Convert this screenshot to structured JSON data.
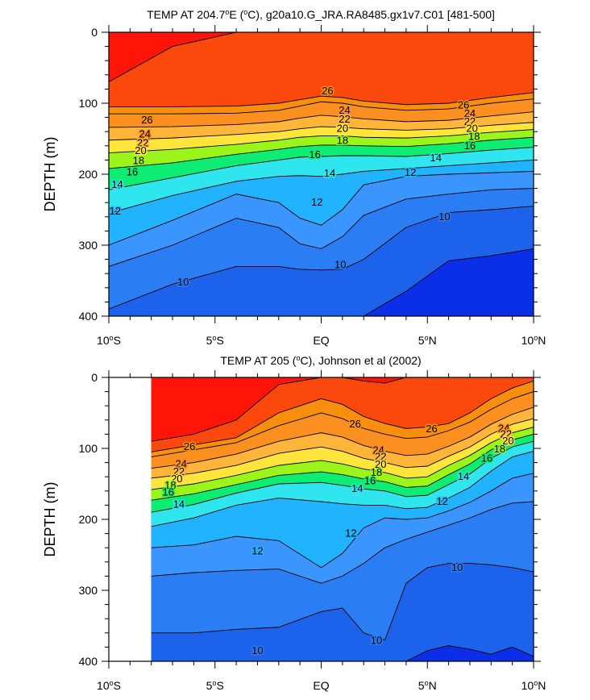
{
  "chart_data": [
    {
      "type": "contour",
      "title": "TEMP AT 204.7°E (°C), g20a10.G_JRA.RA8485.gx1v7.C01 [481-500]",
      "title_parts": {
        "pre": "TEMP AT 204.7",
        "deg1": "o",
        "mid": "E (",
        "deg2": "o",
        "post": "C), g20a10.G_JRA.RA8485.gx1v7.C01 [481-500]"
      },
      "ylabel": "DEPTH (m)",
      "xlim": [
        -10,
        10
      ],
      "ylim": [
        400,
        0
      ],
      "xticks": [
        -10,
        -5,
        0,
        5,
        10
      ],
      "yticks": [
        0,
        100,
        200,
        300,
        400
      ],
      "data_xrange": [
        -10,
        10
      ],
      "levels": [
        8,
        9,
        10,
        11,
        12,
        13,
        14,
        15,
        16,
        17,
        18,
        19,
        20,
        21,
        22,
        23,
        24,
        25,
        26,
        27,
        28
      ],
      "isotherm_depths_x": [
        -10,
        -7,
        -4,
        -2,
        -1,
        0,
        1,
        2,
        4,
        6,
        8,
        10
      ],
      "isotherm_depths": [
        {
          "level": 28,
          "depth": [
            70,
            20,
            0,
            0,
            0,
            0,
            0,
            0,
            0,
            0,
            0,
            0
          ]
        },
        {
          "level": 27,
          "depth": [
            105,
            105,
            104,
            100,
            95,
            90,
            92,
            97,
            102,
            100,
            92,
            85
          ]
        },
        {
          "level": 26,
          "depth": [
            115,
            115,
            114,
            110,
            104,
            98,
            100,
            105,
            110,
            108,
            100,
            94
          ]
        },
        {
          "level": 24,
          "depth": [
            134,
            133,
            130,
            126,
            121,
            117,
            119,
            122,
            126,
            124,
            118,
            112
          ]
        },
        {
          "level": 22,
          "depth": [
            152,
            149,
            144,
            140,
            136,
            133,
            134,
            136,
            138,
            136,
            131,
            127
          ]
        },
        {
          "level": 20,
          "depth": [
            170,
            165,
            158,
            152,
            148,
            146,
            146,
            148,
            149,
            146,
            141,
            137
          ]
        },
        {
          "level": 18,
          "depth": [
            192,
            184,
            172,
            165,
            161,
            159,
            159,
            160,
            161,
            157,
            152,
            148
          ]
        },
        {
          "level": 16,
          "depth": [
            222,
            205,
            188,
            180,
            176,
            175,
            174,
            174,
            175,
            171,
            166,
            162
          ]
        },
        {
          "level": 14,
          "depth": [
            255,
            230,
            210,
            203,
            202,
            203,
            200,
            196,
            192,
            188,
            184,
            180
          ]
        },
        {
          "level": 12,
          "depth": [
            300,
            265,
            228,
            240,
            262,
            272,
            250,
            215,
            203,
            200,
            198,
            196
          ]
        },
        {
          "level": 11,
          "depth": [
            330,
            300,
            262,
            275,
            298,
            305,
            288,
            258,
            235,
            228,
            222,
            220
          ]
        },
        {
          "level": 10,
          "depth": [
            390,
            355,
            330,
            330,
            334,
            335,
            334,
            320,
            275,
            254,
            250,
            245
          ]
        },
        {
          "level": 9,
          "depth": [
            400,
            400,
            400,
            400,
            400,
            400,
            400,
            400,
            365,
            322,
            315,
            305
          ]
        }
      ],
      "contour_labels": [
        {
          "text": "26",
          "x": 0.3,
          "y": 83
        },
        {
          "text": "26",
          "x": 6.7,
          "y": 103
        },
        {
          "text": "26",
          "x": -8.2,
          "y": 124
        },
        {
          "text": "24",
          "x": 1.1,
          "y": 110
        },
        {
          "text": "24",
          "x": 7.0,
          "y": 115
        },
        {
          "text": "24",
          "x": -8.3,
          "y": 144
        },
        {
          "text": "22",
          "x": 1.1,
          "y": 123
        },
        {
          "text": "22",
          "x": 7.0,
          "y": 126
        },
        {
          "text": "22",
          "x": -8.4,
          "y": 156
        },
        {
          "text": "20",
          "x": 1.0,
          "y": 136
        },
        {
          "text": "20",
          "x": 7.1,
          "y": 136
        },
        {
          "text": "20",
          "x": -8.5,
          "y": 167
        },
        {
          "text": "18",
          "x": 1.0,
          "y": 153
        },
        {
          "text": "18",
          "x": 7.2,
          "y": 147
        },
        {
          "text": "18",
          "x": -8.6,
          "y": 181
        },
        {
          "text": "16",
          "x": -0.3,
          "y": 173
        },
        {
          "text": "16",
          "x": 7.0,
          "y": 160
        },
        {
          "text": "16",
          "x": -8.9,
          "y": 197
        },
        {
          "text": "14",
          "x": 0.4,
          "y": 199
        },
        {
          "text": "14",
          "x": 5.4,
          "y": 177
        },
        {
          "text": "14",
          "x": -9.6,
          "y": 215
        },
        {
          "text": "12",
          "x": -0.2,
          "y": 240
        },
        {
          "text": "12",
          "x": 4.2,
          "y": 198
        },
        {
          "text": "12",
          "x": -9.7,
          "y": 252
        },
        {
          "text": "10",
          "x": -6.5,
          "y": 352
        },
        {
          "text": "10",
          "x": 0.9,
          "y": 328
        },
        {
          "text": "10",
          "x": 5.8,
          "y": 260
        }
      ]
    },
    {
      "type": "contour",
      "title": "TEMP AT 205 (°C), Johnson et al (2002)",
      "title_parts": {
        "pre": "TEMP AT 205 (",
        "deg": "o",
        "post": "C), Johnson et al (2002)"
      },
      "ylabel": "DEPTH (m)",
      "xlim": [
        -10,
        10
      ],
      "ylim": [
        400,
        0
      ],
      "xticks": [
        -10,
        -5,
        0,
        5,
        10
      ],
      "yticks": [
        0,
        100,
        200,
        300,
        400
      ],
      "data_xrange": [
        -8,
        10
      ],
      "levels": [
        8,
        9,
        10,
        11,
        12,
        13,
        14,
        15,
        16,
        17,
        18,
        19,
        20,
        21,
        22,
        23,
        24,
        25,
        26,
        27,
        28
      ],
      "isotherm_depths_x": [
        -8,
        -6,
        -4,
        -2,
        0,
        1,
        2,
        3,
        4,
        5,
        6,
        7,
        8,
        9,
        10
      ],
      "isotherm_depths": [
        {
          "level": 28,
          "depth": [
            90,
            80,
            60,
            10,
            0,
            0,
            5,
            8,
            0,
            0,
            0,
            0,
            0,
            0,
            0
          ]
        },
        {
          "level": 27,
          "depth": [
            105,
            95,
            85,
            50,
            30,
            38,
            55,
            65,
            72,
            70,
            65,
            50,
            30,
            15,
            5
          ]
        },
        {
          "level": 26,
          "depth": [
            112,
            102,
            92,
            68,
            50,
            58,
            72,
            80,
            86,
            84,
            75,
            63,
            45,
            30,
            20
          ]
        },
        {
          "level": 24,
          "depth": [
            128,
            120,
            108,
            90,
            78,
            84,
            96,
            104,
            110,
            108,
            97,
            84,
            66,
            52,
            42
          ]
        },
        {
          "level": 22,
          "depth": [
            142,
            135,
            124,
            107,
            98,
            104,
            114,
            120,
            127,
            125,
            111,
            98,
            80,
            66,
            58
          ]
        },
        {
          "level": 20,
          "depth": [
            158,
            150,
            138,
            124,
            117,
            122,
            129,
            134,
            142,
            140,
            124,
            110,
            92,
            78,
            70
          ]
        },
        {
          "level": 18,
          "depth": [
            173,
            164,
            151,
            138,
            133,
            137,
            143,
            147,
            155,
            153,
            137,
            122,
            102,
            88,
            80
          ]
        },
        {
          "level": 16,
          "depth": [
            190,
            179,
            163,
            150,
            148,
            152,
            157,
            160,
            168,
            166,
            151,
            136,
            114,
            98,
            90
          ]
        },
        {
          "level": 14,
          "depth": [
            210,
            198,
            180,
            170,
            175,
            178,
            180,
            180,
            185,
            183,
            170,
            155,
            132,
            112,
            104
          ]
        },
        {
          "level": 12,
          "depth": [
            240,
            236,
            224,
            230,
            268,
            248,
            212,
            198,
            200,
            198,
            188,
            176,
            160,
            142,
            135
          ]
        },
        {
          "level": 11,
          "depth": [
            280,
            275,
            272,
            270,
            290,
            280,
            262,
            240,
            228,
            218,
            208,
            198,
            186,
            177,
            175
          ]
        },
        {
          "level": 10,
          "depth": [
            360,
            360,
            355,
            352,
            330,
            325,
            360,
            370,
            290,
            268,
            262,
            262,
            264,
            268,
            274
          ]
        },
        {
          "level": 9,
          "depth": [
            400,
            400,
            400,
            400,
            400,
            400,
            400,
            400,
            400,
            385,
            378,
            383,
            390,
            380,
            393
          ]
        }
      ],
      "contour_labels": [
        {
          "text": "26",
          "x": 1.6,
          "y": 66
        },
        {
          "text": "26",
          "x": 5.2,
          "y": 73
        },
        {
          "text": "26",
          "x": -6.2,
          "y": 98
        },
        {
          "text": "24",
          "x": 2.7,
          "y": 103
        },
        {
          "text": "24",
          "x": 8.6,
          "y": 72
        },
        {
          "text": "24",
          "x": -6.6,
          "y": 122
        },
        {
          "text": "22",
          "x": 2.8,
          "y": 112
        },
        {
          "text": "22",
          "x": 8.7,
          "y": 80
        },
        {
          "text": "22",
          "x": -6.7,
          "y": 133
        },
        {
          "text": "20",
          "x": 2.8,
          "y": 123
        },
        {
          "text": "20",
          "x": 8.8,
          "y": 90
        },
        {
          "text": "20",
          "x": -6.8,
          "y": 143
        },
        {
          "text": "18",
          "x": 2.6,
          "y": 134
        },
        {
          "text": "18",
          "x": 8.4,
          "y": 101
        },
        {
          "text": "18",
          "x": -7.1,
          "y": 152
        },
        {
          "text": "16",
          "x": 2.3,
          "y": 146
        },
        {
          "text": "16",
          "x": 7.8,
          "y": 114
        },
        {
          "text": "16",
          "x": -7.2,
          "y": 162
        },
        {
          "text": "14",
          "x": 1.7,
          "y": 157
        },
        {
          "text": "14",
          "x": 6.7,
          "y": 140
        },
        {
          "text": "14",
          "x": -6.7,
          "y": 179
        },
        {
          "text": "12",
          "x": 1.4,
          "y": 220
        },
        {
          "text": "12",
          "x": 5.7,
          "y": 175
        },
        {
          "text": "12",
          "x": -3.0,
          "y": 245
        },
        {
          "text": "10",
          "x": -3.0,
          "y": 385
        },
        {
          "text": "10",
          "x": 2.6,
          "y": 371
        },
        {
          "text": "10",
          "x": 6.4,
          "y": 268
        }
      ]
    }
  ],
  "colors": {
    "fill_levels": [
      {
        "min": 0,
        "max": 9,
        "color": "#0b2fe9"
      },
      {
        "min": 9,
        "max": 10,
        "color": "#1c62eb"
      },
      {
        "min": 10,
        "max": 11,
        "color": "#2b7df3"
      },
      {
        "min": 11,
        "max": 12,
        "color": "#3b95ff"
      },
      {
        "min": 12,
        "max": 13,
        "color": "#22b3ff"
      },
      {
        "min": 13,
        "max": 14,
        "color": "#2fd0ff"
      },
      {
        "min": 14,
        "max": 15,
        "color": "#2fe6ee"
      },
      {
        "min": 15,
        "max": 16,
        "color": "#15f2c4"
      },
      {
        "min": 16,
        "max": 17,
        "color": "#0ded73"
      },
      {
        "min": 17,
        "max": 18,
        "color": "#10e010"
      },
      {
        "min": 18,
        "max": 19,
        "color": "#9bf51a"
      },
      {
        "min": 19,
        "max": 20,
        "color": "#ffff3a"
      },
      {
        "min": 20,
        "max": 21,
        "color": "#ffe43c"
      },
      {
        "min": 21,
        "max": 22,
        "color": "#ffca4a"
      },
      {
        "min": 22,
        "max": 23,
        "color": "#ffb43a"
      },
      {
        "min": 23,
        "max": 24,
        "color": "#fda131"
      },
      {
        "min": 24,
        "max": 26,
        "color": "#fb8f20"
      },
      {
        "min": 26,
        "max": 27,
        "color": "#f78e0c"
      },
      {
        "min": 27,
        "max": 28,
        "color": "#fb480c"
      },
      {
        "min": 28,
        "max": 40,
        "color": "#ff1408"
      }
    ],
    "contour_line": "#000000",
    "frame": "#000000"
  }
}
